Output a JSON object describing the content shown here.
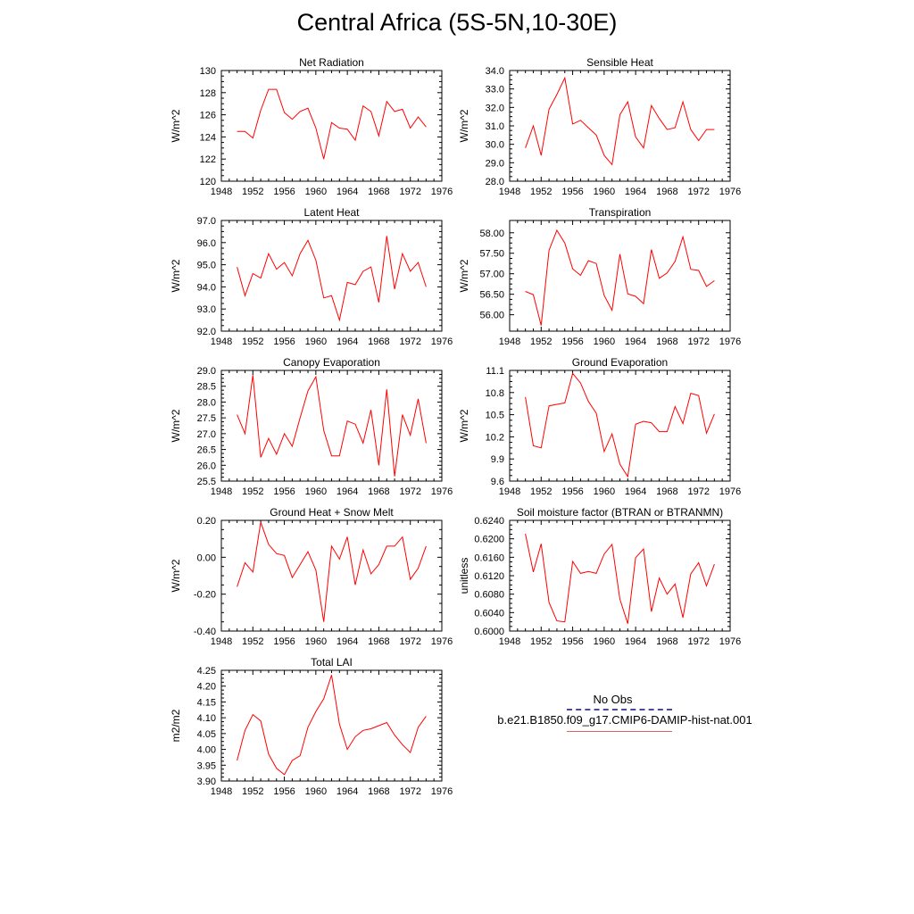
{
  "title": "Central Africa (5S-5N,10-30E)",
  "legend": {
    "title": "No Obs",
    "series_label": "b.e21.B1850.f09_g17.CMIP6-DAMIP-hist-nat.001",
    "obs_color": "#4a4a9a",
    "model_color": "#ff0000"
  },
  "chart_data": [
    {
      "type": "line",
      "title": "Net Radiation",
      "ylabel": "W/m^2",
      "xlim": [
        1948,
        1976
      ],
      "xticks": [
        "1948",
        "1952",
        "1956",
        "1960",
        "1964",
        "1968",
        "1972",
        "1976"
      ],
      "ylim": [
        120,
        130
      ],
      "yticks": [
        "120",
        "122",
        "124",
        "126",
        "128",
        "130"
      ],
      "x": [
        1950,
        1951,
        1952,
        1953,
        1954,
        1955,
        1956,
        1957,
        1958,
        1959,
        1960,
        1961,
        1962,
        1963,
        1964,
        1965,
        1966,
        1967,
        1968,
        1969,
        1970,
        1971,
        1972,
        1973,
        1974
      ],
      "series": [
        {
          "values": [
            124.5,
            124.5,
            123.9,
            126.4,
            128.3,
            128.3,
            126.2,
            125.6,
            126.3,
            126.6,
            124.8,
            122.0,
            125.3,
            124.8,
            124.7,
            123.7,
            126.8,
            126.3,
            124.1,
            127.2,
            126.3,
            126.5,
            124.8,
            125.8,
            124.9
          ]
        }
      ]
    },
    {
      "type": "line",
      "title": "Sensible Heat",
      "ylabel": "W/m^2",
      "xlim": [
        1948,
        1976
      ],
      "xticks": [
        "1948",
        "1952",
        "1956",
        "1960",
        "1964",
        "1968",
        "1972",
        "1976"
      ],
      "ylim": [
        28.0,
        34.0
      ],
      "yticks": [
        "28.0",
        "29.0",
        "30.0",
        "31.0",
        "32.0",
        "33.0",
        "34.0"
      ],
      "x": [
        1950,
        1951,
        1952,
        1953,
        1954,
        1955,
        1956,
        1957,
        1958,
        1959,
        1960,
        1961,
        1962,
        1963,
        1964,
        1965,
        1966,
        1967,
        1968,
        1969,
        1970,
        1971,
        1972,
        1973,
        1974
      ],
      "series": [
        {
          "values": [
            29.8,
            31.0,
            29.4,
            31.9,
            32.7,
            33.6,
            31.1,
            31.3,
            30.9,
            30.5,
            29.4,
            28.9,
            31.6,
            32.3,
            30.4,
            29.8,
            32.1,
            31.4,
            30.8,
            30.9,
            32.3,
            30.8,
            30.2,
            30.8,
            30.8
          ]
        }
      ]
    },
    {
      "type": "line",
      "title": "Latent Heat",
      "ylabel": "W/m^2",
      "xlim": [
        1948,
        1976
      ],
      "xticks": [
        "1948",
        "1952",
        "1956",
        "1960",
        "1964",
        "1968",
        "1972",
        "1976"
      ],
      "ylim": [
        92.0,
        97.0
      ],
      "yticks": [
        "92.0",
        "93.0",
        "94.0",
        "95.0",
        "96.0",
        "97.0"
      ],
      "x": [
        1950,
        1951,
        1952,
        1953,
        1954,
        1955,
        1956,
        1957,
        1958,
        1959,
        1960,
        1961,
        1962,
        1963,
        1964,
        1965,
        1966,
        1967,
        1968,
        1969,
        1970,
        1971,
        1972,
        1973,
        1974
      ],
      "series": [
        {
          "values": [
            94.9,
            93.6,
            94.6,
            94.4,
            95.5,
            94.8,
            95.1,
            94.5,
            95.5,
            96.1,
            95.2,
            93.5,
            93.6,
            92.5,
            94.2,
            94.1,
            94.7,
            94.9,
            93.3,
            96.3,
            93.9,
            95.5,
            94.7,
            95.1,
            94.0
          ]
        }
      ]
    },
    {
      "type": "line",
      "title": "Transpiration",
      "ylabel": "W/m^2",
      "xlim": [
        1948,
        1976
      ],
      "xticks": [
        "1948",
        "1952",
        "1956",
        "1960",
        "1964",
        "1968",
        "1972",
        "1976"
      ],
      "ylim": [
        55.6,
        58.3
      ],
      "yticks": [
        "56.00",
        "56.50",
        "57.00",
        "57.50",
        "58.00"
      ],
      "ytick_values": [
        56.0,
        56.5,
        57.0,
        57.5,
        58.0
      ],
      "x": [
        1950,
        1951,
        1952,
        1953,
        1954,
        1955,
        1956,
        1957,
        1958,
        1959,
        1960,
        1961,
        1962,
        1963,
        1964,
        1965,
        1966,
        1967,
        1968,
        1969,
        1970,
        1971,
        1972,
        1973,
        1974
      ],
      "series": [
        {
          "values": [
            56.57,
            56.49,
            55.74,
            57.57,
            58.06,
            57.75,
            57.12,
            56.96,
            57.32,
            57.25,
            56.47,
            56.11,
            57.48,
            56.51,
            56.45,
            56.27,
            57.59,
            56.89,
            57.02,
            57.3,
            57.9,
            57.11,
            57.08,
            56.69,
            56.83
          ]
        }
      ]
    },
    {
      "type": "line",
      "title": "Canopy Evaporation",
      "ylabel": "W/m^2",
      "xlim": [
        1948,
        1976
      ],
      "xticks": [
        "1948",
        "1952",
        "1956",
        "1960",
        "1964",
        "1968",
        "1972",
        "1976"
      ],
      "ylim": [
        25.5,
        29.0
      ],
      "yticks": [
        "25.5",
        "26.0",
        "26.5",
        "27.0",
        "27.5",
        "28.0",
        "28.5",
        "29.0"
      ],
      "x": [
        1950,
        1951,
        1952,
        1953,
        1954,
        1955,
        1956,
        1957,
        1958,
        1959,
        1960,
        1961,
        1962,
        1963,
        1964,
        1965,
        1966,
        1967,
        1968,
        1969,
        1970,
        1971,
        1972,
        1973,
        1974
      ],
      "series": [
        {
          "values": [
            27.6,
            27.0,
            28.85,
            26.25,
            26.85,
            26.35,
            27.0,
            26.6,
            27.5,
            28.35,
            28.8,
            27.1,
            26.3,
            26.3,
            27.4,
            27.3,
            26.7,
            27.75,
            26.0,
            28.4,
            25.65,
            27.6,
            26.95,
            28.1,
            26.7
          ]
        }
      ]
    },
    {
      "type": "line",
      "title": "Ground Evaporation",
      "ylabel": "W/m^2",
      "xlim": [
        1948,
        1976
      ],
      "xticks": [
        "1948",
        "1952",
        "1956",
        "1960",
        "1964",
        "1968",
        "1972",
        "1976"
      ],
      "ylim": [
        9.6,
        11.1
      ],
      "yticks": [
        "9.6",
        "9.9",
        "10.2",
        "10.5",
        "10.8",
        "11.1"
      ],
      "x": [
        1950,
        1951,
        1952,
        1953,
        1954,
        1955,
        1956,
        1957,
        1958,
        1959,
        1960,
        1961,
        1962,
        1963,
        1964,
        1965,
        1966,
        1967,
        1968,
        1969,
        1970,
        1971,
        1972,
        1973,
        1974
      ],
      "series": [
        {
          "values": [
            10.74,
            10.08,
            10.05,
            10.62,
            10.64,
            10.66,
            11.06,
            10.93,
            10.68,
            10.52,
            10.0,
            10.24,
            9.83,
            9.66,
            10.37,
            10.41,
            10.39,
            10.27,
            10.27,
            10.61,
            10.38,
            10.79,
            10.76,
            10.25,
            10.51
          ]
        }
      ]
    },
    {
      "type": "line",
      "title": "Ground Heat + Snow Melt",
      "ylabel": "W/m^2",
      "xlim": [
        1948,
        1976
      ],
      "xticks": [
        "1948",
        "1952",
        "1956",
        "1960",
        "1964",
        "1968",
        "1972",
        "1976"
      ],
      "ylim": [
        -0.4,
        0.2
      ],
      "yticks": [
        "-0.40",
        "-0.20",
        "0.00",
        "0.20"
      ],
      "ytick_values": [
        -0.4,
        -0.2,
        0.0,
        0.2
      ],
      "x": [
        1950,
        1951,
        1952,
        1953,
        1954,
        1955,
        1956,
        1957,
        1958,
        1959,
        1960,
        1961,
        1962,
        1963,
        1964,
        1965,
        1966,
        1967,
        1968,
        1969,
        1970,
        1971,
        1972,
        1973,
        1974
      ],
      "series": [
        {
          "values": [
            -0.16,
            -0.03,
            -0.08,
            0.19,
            0.07,
            0.02,
            0.01,
            -0.11,
            -0.04,
            0.03,
            -0.07,
            -0.35,
            0.06,
            -0.01,
            0.11,
            -0.15,
            0.04,
            -0.09,
            -0.04,
            0.06,
            0.06,
            0.11,
            -0.12,
            -0.06,
            0.06
          ]
        }
      ]
    },
    {
      "type": "line",
      "title": "Soil moisture factor (BTRAN or BTRANMN)",
      "ylabel": "unitless",
      "xlim": [
        1948,
        1976
      ],
      "xticks": [
        "1948",
        "1952",
        "1956",
        "1960",
        "1964",
        "1968",
        "1972",
        "1976"
      ],
      "ylim": [
        0.6,
        0.624
      ],
      "yticks": [
        "0.6000",
        "0.6040",
        "0.6080",
        "0.6120",
        "0.6160",
        "0.6200",
        "0.6240"
      ],
      "x": [
        1950,
        1951,
        1952,
        1953,
        1954,
        1955,
        1956,
        1957,
        1958,
        1959,
        1960,
        1961,
        1962,
        1963,
        1964,
        1965,
        1966,
        1967,
        1968,
        1969,
        1970,
        1971,
        1972,
        1973,
        1974
      ],
      "series": [
        {
          "values": [
            0.6211,
            0.6128,
            0.6189,
            0.6062,
            0.6022,
            0.602,
            0.6151,
            0.6125,
            0.6129,
            0.6125,
            0.6167,
            0.6188,
            0.6069,
            0.6016,
            0.6159,
            0.6178,
            0.6042,
            0.6115,
            0.608,
            0.6102,
            0.6029,
            0.6124,
            0.6148,
            0.6098,
            0.6145
          ]
        }
      ]
    },
    {
      "type": "line",
      "title": "Total LAI",
      "ylabel": "m2/m2",
      "xlim": [
        1948,
        1976
      ],
      "xticks": [
        "1948",
        "1952",
        "1956",
        "1960",
        "1964",
        "1968",
        "1972",
        "1976"
      ],
      "ylim": [
        3.9,
        4.25
      ],
      "yticks": [
        "3.90",
        "3.95",
        "4.00",
        "4.05",
        "4.10",
        "4.15",
        "4.20",
        "4.25"
      ],
      "x": [
        1950,
        1951,
        1952,
        1953,
        1954,
        1955,
        1956,
        1957,
        1958,
        1959,
        1960,
        1961,
        1962,
        1963,
        1964,
        1965,
        1966,
        1967,
        1968,
        1969,
        1970,
        1971,
        1972,
        1973,
        1974
      ],
      "series": [
        {
          "values": [
            3.965,
            4.06,
            4.11,
            4.09,
            3.985,
            3.94,
            3.92,
            3.965,
            3.98,
            4.07,
            4.12,
            4.16,
            4.235,
            4.08,
            4.0,
            4.04,
            4.06,
            4.065,
            4.075,
            4.085,
            4.045,
            4.015,
            3.99,
            4.07,
            4.105
          ]
        }
      ]
    }
  ]
}
